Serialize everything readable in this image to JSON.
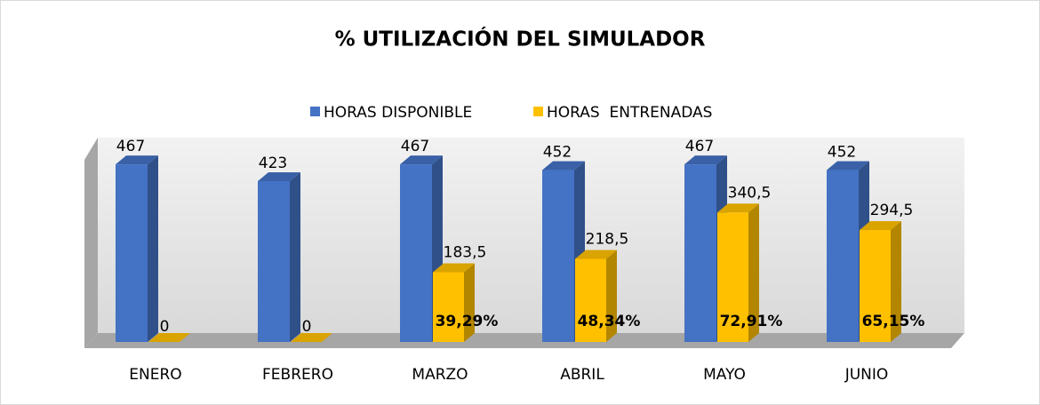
{
  "chart_data": {
    "type": "bar3d",
    "title": "% UTILIZACIÓN DEL SIMULADOR",
    "categories": [
      "ENERO",
      "FEBRERO",
      "MARZO",
      "ABRIL",
      "MAYO",
      "JUNIO"
    ],
    "series": [
      {
        "name": "HORAS DISPONIBLE",
        "color": "#4472c4",
        "values": [
          467,
          423,
          467,
          452,
          467,
          452
        ]
      },
      {
        "name": "HORAS  ENTRENADAS",
        "color": "#ffc000",
        "values": [
          0,
          0,
          183.5,
          218.5,
          340.5,
          294.5
        ],
        "value_labels": [
          "0",
          "0",
          "183,5",
          "218,5",
          "340,5",
          "294,5"
        ]
      }
    ],
    "percent_labels": [
      null,
      null,
      "39,29%",
      "48,34%",
      "72,91%",
      "65,15%"
    ],
    "ylim": [
      0,
      500
    ],
    "legend": "top"
  }
}
